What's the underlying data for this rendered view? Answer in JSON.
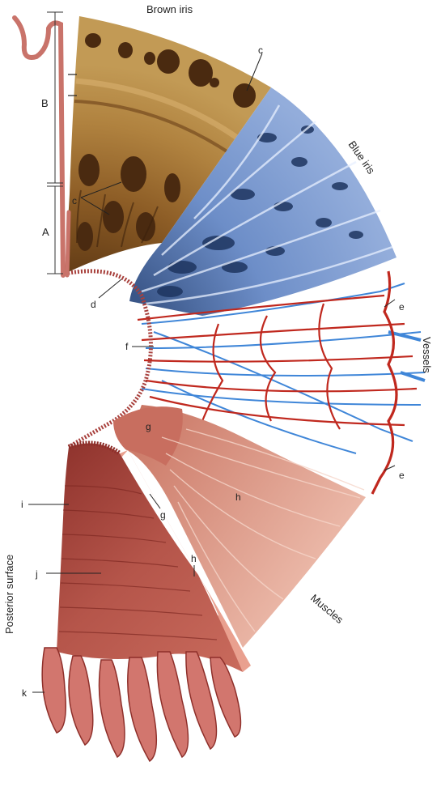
{
  "labels": {
    "brown_iris": "Brown iris",
    "blue_iris": "Blue iris",
    "vessels": "Vessels",
    "muscles": "Muscles",
    "posterior_surface": "Posterior surface",
    "A": "A",
    "B": "B",
    "c1": "c",
    "c2": "c",
    "d": "d",
    "e1": "e",
    "e2": "e",
    "f": "f",
    "g1": "g",
    "g2": "g",
    "h1": "h",
    "h2": "h",
    "i": "i",
    "j": "j",
    "k": "k"
  },
  "colors": {
    "brown_iris": "#9c6a2f",
    "brown_dark": "#4a2a10",
    "blue_iris": "#6f8fc6",
    "blue_dark": "#1e3560",
    "artery": "#c0281e",
    "vein": "#3f86d8",
    "muscle": "#d78d7c",
    "posterior": "#a5453d"
  }
}
